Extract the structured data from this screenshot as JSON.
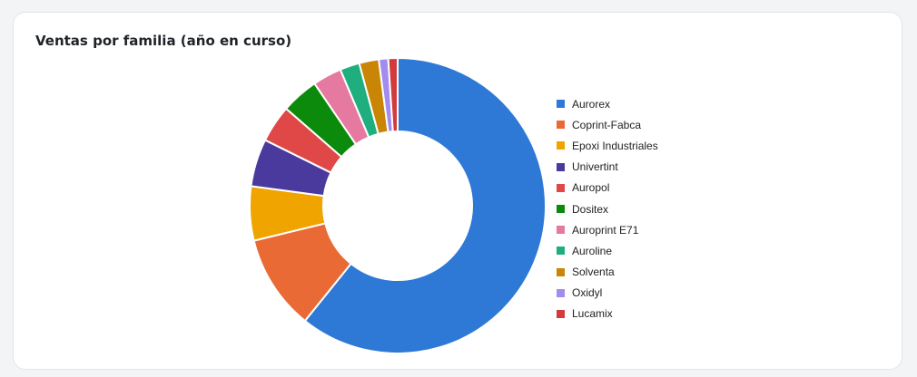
{
  "card": {
    "title": "Ventas por familia (año en curso)"
  },
  "chart_data": {
    "type": "pie",
    "donut": true,
    "title": "Ventas por familia (año en curso)",
    "legend_position": "right",
    "slices": [
      {
        "label": "Aurorex",
        "value": 59.5,
        "color": "#2e79d6"
      },
      {
        "label": "Coprint-Fabca",
        "value": 10.2,
        "color": "#ea6a35"
      },
      {
        "label": "Epoxi Industriales",
        "value": 5.8,
        "color": "#efa400"
      },
      {
        "label": "Univertint",
        "value": 5.1,
        "color": "#4a3a9e"
      },
      {
        "label": "Auropol",
        "value": 4.0,
        "color": "#e04848"
      },
      {
        "label": "Dositex",
        "value": 4.0,
        "color": "#0b8a0b"
      },
      {
        "label": "Auroprint E71",
        "value": 3.1,
        "color": "#e579a0"
      },
      {
        "label": "Auroline",
        "value": 2.1,
        "color": "#1fae7e"
      },
      {
        "label": "Solventa",
        "value": 2.1,
        "color": "#c98506"
      },
      {
        "label": "Oxidyl",
        "value": 1.0,
        "color": "#a28cf0"
      },
      {
        "label": "Lucamix",
        "value": 1.0,
        "color": "#d23b3b"
      }
    ]
  }
}
